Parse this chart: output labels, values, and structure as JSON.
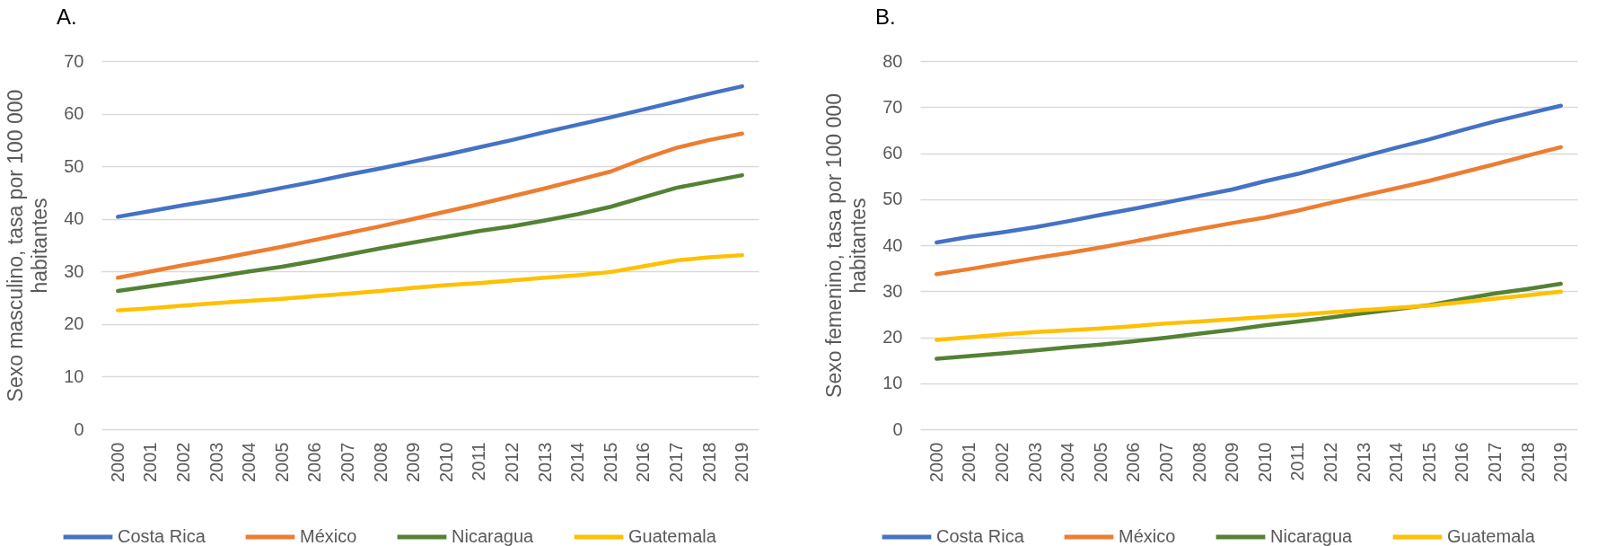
{
  "chart_data": [
    {
      "type": "line",
      "title": "A.",
      "ylabel": "Sexo masculino, tasa por 100 000 habitantes",
      "categories": [
        "2000",
        "2001",
        "2002",
        "2003",
        "2004",
        "2005",
        "2006",
        "2007",
        "2008",
        "2009",
        "2010",
        "2011",
        "2012",
        "2013",
        "2014",
        "2015",
        "2016",
        "2017",
        "2018",
        "2019"
      ],
      "series": [
        {
          "name": "Costa Rica",
          "color": "#4472c4",
          "values": [
            40.4,
            41.5,
            42.6,
            43.6,
            44.7,
            45.9,
            47.1,
            48.4,
            49.6,
            50.9,
            52.2,
            53.6,
            55.0,
            56.5,
            57.9,
            59.3,
            60.8,
            62.3,
            63.8,
            65.2
          ]
        },
        {
          "name": "México",
          "color": "#ed7d31",
          "values": [
            28.8,
            30.0,
            31.2,
            32.3,
            33.5,
            34.7,
            36.0,
            37.3,
            38.6,
            40.0,
            41.4,
            42.8,
            44.3,
            45.8,
            47.4,
            49.0,
            51.4,
            53.5,
            55.0,
            56.2
          ]
        },
        {
          "name": "Nicaragua",
          "color": "#548235",
          "values": [
            26.3,
            27.2,
            28.1,
            29.0,
            30.0,
            30.9,
            32.0,
            33.2,
            34.4,
            35.5,
            36.6,
            37.7,
            38.6,
            39.7,
            40.9,
            42.3,
            44.1,
            45.9,
            47.1,
            48.3
          ]
        },
        {
          "name": "Guatemala",
          "color": "#ffc000",
          "values": [
            22.6,
            23.0,
            23.5,
            24.0,
            24.4,
            24.8,
            25.3,
            25.8,
            26.3,
            26.9,
            27.4,
            27.8,
            28.3,
            28.8,
            29.3,
            29.9,
            31.0,
            32.1,
            32.7,
            33.1
          ]
        }
      ],
      "ylim": [
        0,
        70
      ],
      "yticks": [
        0,
        10,
        20,
        30,
        40,
        50,
        60,
        70
      ],
      "grid": "y",
      "legend": "bottom",
      "line_style": "solid"
    },
    {
      "type": "line",
      "title": "B.",
      "ylabel": "Sexo femenino, tasa por 100 000 habitantes",
      "categories": [
        "2000",
        "2001",
        "2002",
        "2003",
        "2004",
        "2005",
        "2006",
        "2007",
        "2008",
        "2009",
        "2010",
        "2011",
        "2012",
        "2013",
        "2014",
        "2015",
        "2016",
        "2017",
        "2018",
        "2019"
      ],
      "series": [
        {
          "name": "Costa Rica",
          "color": "#4472c4",
          "values": [
            40.6,
            41.8,
            42.8,
            43.9,
            45.2,
            46.6,
            47.9,
            49.3,
            50.7,
            52.1,
            53.9,
            55.5,
            57.4,
            59.3,
            61.2,
            63.0,
            65.0,
            66.9,
            68.6,
            70.3
          ]
        },
        {
          "name": "México",
          "color": "#ed7d31",
          "values": [
            33.7,
            34.8,
            36.0,
            37.2,
            38.3,
            39.5,
            40.8,
            42.2,
            43.5,
            44.8,
            46.0,
            47.5,
            49.2,
            50.8,
            52.4,
            54.0,
            55.8,
            57.6,
            59.5,
            61.3
          ]
        },
        {
          "name": "Nicaragua",
          "color": "#548235",
          "values": [
            15.3,
            15.9,
            16.5,
            17.1,
            17.8,
            18.4,
            19.1,
            19.9,
            20.8,
            21.6,
            22.6,
            23.4,
            24.3,
            25.2,
            26.1,
            27.0,
            28.3,
            29.5,
            30.5,
            31.6
          ]
        },
        {
          "name": "Guatemala",
          "color": "#ffc000",
          "values": [
            19.4,
            20.0,
            20.6,
            21.1,
            21.5,
            21.9,
            22.4,
            23.0,
            23.4,
            23.9,
            24.4,
            24.9,
            25.4,
            25.9,
            26.4,
            26.9,
            27.6,
            28.4,
            29.1,
            29.9
          ]
        }
      ],
      "ylim": [
        0,
        80
      ],
      "yticks": [
        0,
        10,
        20,
        30,
        40,
        50,
        60,
        70,
        80
      ],
      "grid": "y",
      "legend": "bottom",
      "line_style": "solid"
    }
  ]
}
